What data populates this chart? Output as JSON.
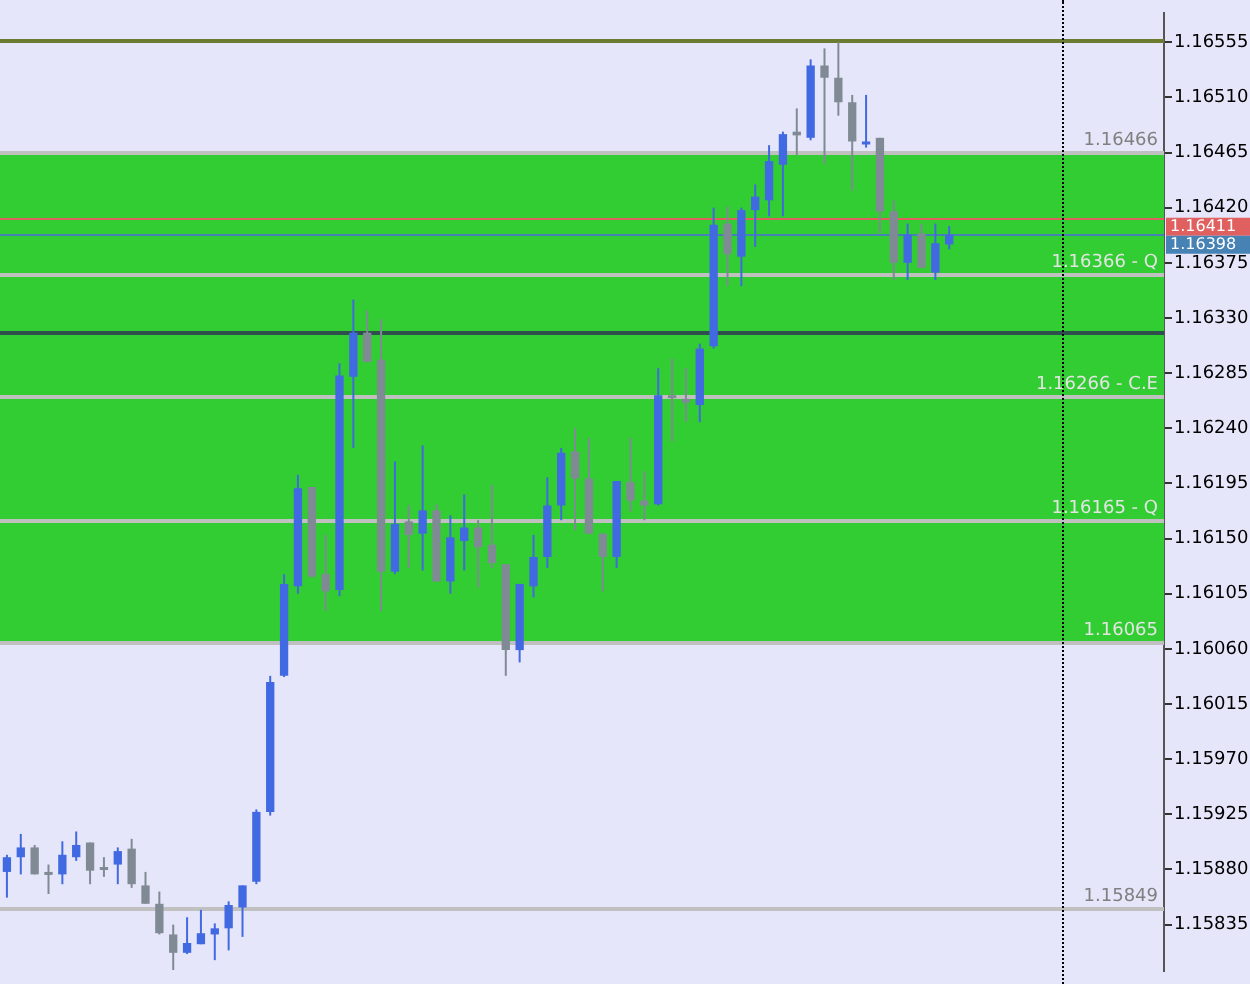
{
  "chart_data": {
    "type": "candlestick",
    "categories": [
      null,
      null,
      null,
      null,
      null,
      null,
      null,
      null,
      null,
      null,
      null,
      null,
      null,
      null,
      null,
      null,
      null,
      null,
      null,
      null,
      null,
      null,
      null,
      null,
      null,
      null,
      null,
      null,
      null,
      null,
      null,
      null,
      null,
      null,
      null,
      null,
      null,
      null,
      null,
      null,
      null,
      null,
      null,
      null,
      null,
      null,
      null,
      null,
      null,
      null,
      null,
      null,
      null,
      null,
      null,
      null,
      null,
      null,
      null,
      null,
      null,
      null,
      null,
      null,
      null,
      null,
      null,
      null,
      null,
      null,
      null,
      null,
      null,
      null,
      null,
      null,
      null,
      null,
      null,
      null,
      null,
      null,
      null,
      null
    ],
    "ohlc": [
      [
        1.15878,
        1.15892,
        1.15857,
        1.1589
      ],
      [
        1.1589,
        1.15909,
        1.15876,
        1.15898
      ],
      [
        1.15898,
        1.159,
        1.15876,
        1.15876
      ],
      [
        1.15878,
        1.15884,
        1.1586,
        1.15876
      ],
      [
        1.15876,
        1.15903,
        1.15868,
        1.15892
      ],
      [
        1.1589,
        1.15911,
        1.15887,
        1.159
      ],
      [
        1.15902,
        1.15902,
        1.15868,
        1.15879
      ],
      [
        1.15882,
        1.1589,
        1.15874,
        1.15881
      ],
      [
        1.15884,
        1.15898,
        1.15868,
        1.15895
      ],
      [
        1.15897,
        1.15905,
        1.15865,
        1.15868
      ],
      [
        1.15867,
        1.15878,
        1.15852,
        1.15852
      ],
      [
        1.15852,
        1.15862,
        1.15827,
        1.15828
      ],
      [
        1.15827,
        1.15835,
        1.15798,
        1.15812
      ],
      [
        1.15812,
        1.15841,
        1.15811,
        1.1582
      ],
      [
        1.15819,
        1.15847,
        1.15819,
        1.15828
      ],
      [
        1.15827,
        1.15836,
        1.15806,
        1.15832
      ],
      [
        1.15832,
        1.15854,
        1.15814,
        1.15851
      ],
      [
        1.15849,
        1.15867,
        1.15825,
        1.15867
      ],
      [
        1.1587,
        1.15929,
        1.15868,
        1.15927
      ],
      [
        1.15927,
        1.16038,
        1.15924,
        1.16033
      ],
      [
        1.16038,
        1.16121,
        1.16037,
        1.16113
      ],
      [
        1.16111,
        1.16202,
        1.16105,
        1.16191
      ],
      [
        1.16192,
        1.16192,
        1.16118,
        1.16119
      ],
      [
        1.16121,
        1.16153,
        1.16091,
        1.16107
      ],
      [
        1.16108,
        1.16293,
        1.16103,
        1.16283
      ],
      [
        1.16282,
        1.16345,
        1.16224,
        1.16318
      ],
      [
        1.16318,
        1.16336,
        1.16294,
        1.16294
      ],
      [
        1.16296,
        1.16329,
        1.16091,
        1.16123
      ],
      [
        1.16123,
        1.16213,
        1.16121,
        1.16162
      ],
      [
        1.16164,
        1.16177,
        1.16126,
        1.16153
      ],
      [
        1.16154,
        1.16226,
        1.16124,
        1.16173
      ],
      [
        1.16173,
        1.16178,
        1.16115,
        1.16115
      ],
      [
        1.16115,
        1.16169,
        1.16105,
        1.16151
      ],
      [
        1.16148,
        1.16186,
        1.16124,
        1.16159
      ],
      [
        1.16159,
        1.16165,
        1.1611,
        1.16143
      ],
      [
        1.16145,
        1.16194,
        1.16126,
        1.1613
      ],
      [
        1.16129,
        1.16129,
        1.16038,
        1.16059
      ],
      [
        1.16059,
        1.16113,
        1.16049,
        1.16113
      ],
      [
        1.16111,
        1.16153,
        1.16102,
        1.16135
      ],
      [
        1.16135,
        1.162,
        1.16126,
        1.16177
      ],
      [
        1.16177,
        1.16224,
        1.16165,
        1.1622
      ],
      [
        1.16221,
        1.1624,
        1.16157,
        1.16199
      ],
      [
        1.16199,
        1.16232,
        1.16154,
        1.16154
      ],
      [
        1.16154,
        1.16154,
        1.16107,
        1.16135
      ],
      [
        1.16135,
        1.16197,
        1.16126,
        1.16197
      ],
      [
        1.16196,
        1.16232,
        1.16172,
        1.16181
      ],
      [
        1.16181,
        1.16205,
        1.16165,
        1.16177
      ],
      [
        1.16178,
        1.16289,
        1.16177,
        1.16267
      ],
      [
        1.16267,
        1.16297,
        1.16229,
        1.16266
      ],
      [
        1.16264,
        1.16289,
        1.16245,
        1.16261
      ],
      [
        1.16259,
        1.16309,
        1.16245,
        1.16305
      ],
      [
        1.16307,
        1.1642,
        1.16305,
        1.16406
      ],
      [
        1.16407,
        1.16421,
        1.16356,
        1.16382
      ],
      [
        1.1638,
        1.1642,
        1.16356,
        1.16418
      ],
      [
        1.16418,
        1.16439,
        1.16388,
        1.16429
      ],
      [
        1.16426,
        1.16471,
        1.16413,
        1.16458
      ],
      [
        1.16455,
        1.16482,
        1.16413,
        1.1648
      ],
      [
        1.16482,
        1.16501,
        1.16463,
        1.16479
      ],
      [
        1.16477,
        1.16541,
        1.16475,
        1.16536
      ],
      [
        1.16536,
        1.1655,
        1.16456,
        1.16526
      ],
      [
        1.16526,
        1.16555,
        1.16495,
        1.16506
      ],
      [
        1.16506,
        1.16512,
        1.16434,
        1.16474
      ],
      [
        1.16472,
        1.16512,
        1.16469,
        1.16474
      ],
      [
        1.16477,
        1.16477,
        1.16399,
        1.16417
      ],
      [
        1.16417,
        1.16426,
        1.16361,
        1.16375
      ],
      [
        1.16375,
        1.16407,
        1.16361,
        1.16398
      ],
      [
        1.16399,
        1.16407,
        1.16371,
        1.16371
      ],
      [
        1.16367,
        1.16407,
        1.16361,
        1.16391
      ],
      [
        1.1639,
        1.16405,
        1.16386,
        1.16398
      ],
      null,
      null,
      null,
      null,
      null,
      null,
      null,
      null,
      null,
      null,
      null,
      null,
      null,
      null,
      null
    ],
    "colors": [
      "#4169e1",
      "#4169e1",
      "#808a94",
      "#808a94",
      "#4169e1",
      "#4169e1",
      "#808a94",
      "#808a94",
      "#4169e1",
      "#808a94",
      "#808a94",
      "#808a94",
      "#808a94",
      "#4169e1",
      "#4169e1",
      "#4169e1",
      "#4169e1",
      "#4169e1",
      "#4169e1",
      "#4169e1",
      "#4169e1",
      "#4169e1",
      "#808a94",
      "#808a94",
      "#4169e1",
      "#4169e1",
      "#808a94",
      "#808a94",
      "#4169e1",
      "#808a94",
      "#4169e1",
      "#808a94",
      "#4169e1",
      "#4169e1",
      "#808a94",
      "#808a94",
      "#808a94",
      "#4169e1",
      "#4169e1",
      "#4169e1",
      "#4169e1",
      "#808a94",
      "#808a94",
      "#808a94",
      "#4169e1",
      "#808a94",
      "#808a94",
      "#4169e1",
      "#808a94",
      "#808a94",
      "#4169e1",
      "#4169e1",
      "#808a94",
      "#4169e1",
      "#4169e1",
      "#4169e1",
      "#4169e1",
      "#808a94",
      "#4169e1",
      "#808a94",
      "#808a94",
      "#808a94",
      "#4169e1",
      "#808a94",
      "#808a94",
      "#4169e1",
      "#808a94",
      "#4169e1",
      "#4169e1",
      null,
      null,
      null,
      null,
      null,
      null,
      null,
      null,
      null,
      null,
      null,
      null,
      null,
      null,
      null
    ],
    "ylim": [
      1.15797,
      1.16579
    ],
    "yticks": [
      1.16555,
      {
        "value": 1.1651,
        "label": "1.16510"
      },
      1.16465,
      {
        "value": 1.1642,
        "label": "1.16420"
      },
      1.16375,
      {
        "value": 1.1633,
        "label": "1.16330"
      },
      1.16285,
      {
        "value": 1.1624,
        "label": "1.16240"
      },
      1.16195,
      {
        "value": 1.1615,
        "label": "1.16150"
      },
      1.16105,
      {
        "value": 1.1606,
        "label": "1.16060"
      },
      1.16015,
      {
        "value": 1.1597,
        "label": "1.15970"
      },
      1.15925,
      {
        "value": 1.1588,
        "label": "1.15880"
      },
      1.15835
    ],
    "bands": [
      {
        "axis": "y",
        "from": 1.16065,
        "to": 1.16466,
        "color": "#32cd32"
      }
    ],
    "ref_lines": [
      {
        "axis": "y",
        "value": 1.16466,
        "label": "1.16466",
        "color": "#c0c0c0"
      },
      {
        "axis": "y",
        "value": 1.16366,
        "label": "1.16366 - Q",
        "color": "#c0c0c0"
      },
      {
        "axis": "y",
        "value": 1.16266,
        "label": "1.16266 - C.E",
        "color": "#c0c0c0"
      },
      {
        "axis": "y",
        "value": 1.16165,
        "label": "1.16165 - Q",
        "color": "#c0c0c0"
      },
      {
        "axis": "y",
        "value": 1.16065,
        "label": "1.16065",
        "color": "#c0c0c0"
      },
      {
        "axis": "y",
        "value": 1.15849,
        "label": "1.15849",
        "color": "#c0c0c0"
      },
      {
        "axis": "y",
        "value": 1.16318,
        "color": "#2f4f4f"
      },
      {
        "axis": "y",
        "value": 1.16557,
        "color": "#6b7b2f"
      },
      {
        "axis": "y",
        "value": 1.16411,
        "label": "1.16411",
        "color": "#e06060",
        "line_style": "solid"
      },
      {
        "axis": "y",
        "value": 1.16398,
        "label": "1.16398",
        "color": "#4682b4",
        "line_style": "solid"
      }
    ],
    "tick_labels": "y",
    "grid": false,
    "legend": false
  }
}
